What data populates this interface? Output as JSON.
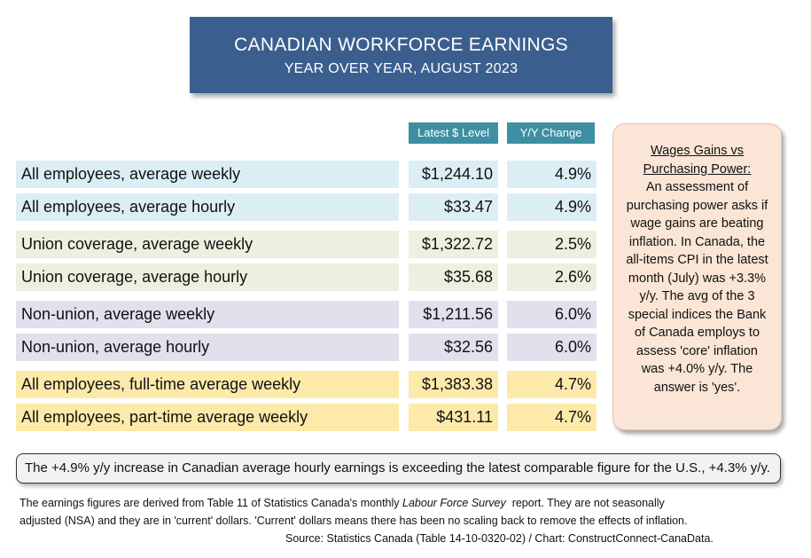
{
  "title": "CANADIAN WORKFORCE EARNINGS",
  "subtitle": "YEAR OVER YEAR, AUGUST 2023",
  "chart_data": {
    "type": "table",
    "columns": [
      "Latest $ Level",
      "Y/Y Change"
    ],
    "rows": [
      {
        "label": "All employees, average weekly",
        "level": "$1,244.10",
        "change": "4.9%",
        "group_color": "#dbeef4"
      },
      {
        "label": "All employees, average hourly",
        "level": "$33.47",
        "change": "4.9%",
        "group_color": "#dbeef4"
      },
      {
        "label": "Union coverage, average weekly",
        "level": "$1,322.72",
        "change": "2.5%",
        "group_color": "#ebf1de"
      },
      {
        "label": "Union coverage, average hourly",
        "level": "$35.68",
        "change": "2.6%",
        "group_color": "#ebf1de"
      },
      {
        "label": "Non-union, average weekly",
        "level": "$1,211.56",
        "change": "6.0%",
        "group_color": "#e4dfec"
      },
      {
        "label": "Non-union, average hourly",
        "level": "$32.56",
        "change": "6.0%",
        "group_color": "#e4dfec"
      },
      {
        "label": "All employees, full-time average weekly",
        "level": "$1,383.38",
        "change": "4.7%",
        "group_color": "#fde9a9"
      },
      {
        "label": "All employees, part-time average weekly",
        "level": "$431.11",
        "change": "4.7%",
        "group_color": "#fde9a9"
      }
    ]
  },
  "sidebar": {
    "title_line1": "Wages Gains vs",
    "title_line2": "Purchasing Power:",
    "body": "An assessment of purchasing power asks if wage gains are beating inflation. In Canada, the all-items CPI in the latest month (July) was +3.3% y/y. The avg of the 3 special indices the Bank of Canada employs to assess 'core' inflation was +4.0% y/y. The answer is 'yes'."
  },
  "note": "The +4.9% y/y increase in Canadian average hourly earnings is exceeding the latest comparable figure for the U.S., +4.3% y/y.",
  "footnote": {
    "line1_before": "The earnings figures are derived from Table 11 of Statistics Canada's monthly ",
    "line1_italic": "Labour Force Survey",
    "line1_after": "  report. They are not seasonally",
    "line2": "adjusted (NSA) and they are in 'current' dollars. 'Current' dollars means there has been no scaling back to remove the effects of inflation.",
    "source": "Source: Statistics Canada (Table 14-10-0320-02) / Chart: ConstructConnect-CanaData."
  },
  "colors": {
    "title_bg": "#3a5f8f",
    "header_bg": "#3e8fa3",
    "sidebar_bg": "#fbe5d6"
  }
}
